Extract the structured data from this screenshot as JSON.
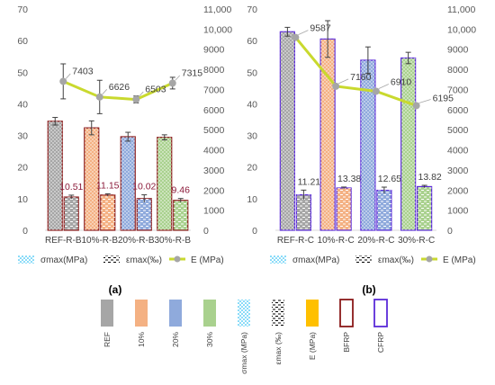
{
  "chart_data": [
    {
      "type": "bar",
      "panel_label": "(a)",
      "categories": [
        "REF-R-B",
        "10%-R-B",
        "20%-R-B",
        "30%-R-B"
      ],
      "y_left": {
        "min": 0,
        "max": 70,
        "ticks": [
          "0",
          "10",
          "20",
          "30",
          "40",
          "50",
          "60",
          "70"
        ]
      },
      "y_right": {
        "min": 0,
        "max": 11000,
        "ticks": [
          "0",
          "1000",
          "2000",
          "3000",
          "4000",
          "5000",
          "6000",
          "7000",
          "8000",
          "9000",
          "10,000",
          "11,000"
        ]
      },
      "series": [
        {
          "name": "σmax(MPa)",
          "axis": "left",
          "kind": "bar",
          "values": [
            34.5,
            32.4,
            29.6,
            29.4
          ],
          "errors": [
            1.2,
            2.2,
            1.4,
            0.8
          ],
          "data_labels": null
        },
        {
          "name": "εmax(‰)",
          "axis": "left",
          "kind": "bar",
          "values": [
            10.51,
            11.15,
            10.02,
            9.46
          ],
          "errors": [
            0.6,
            0.4,
            1.2,
            0.6
          ],
          "data_labels": [
            "10.51",
            "11.15",
            "10.02",
            "9.46"
          ]
        },
        {
          "name": "E (MPa)",
          "axis": "right",
          "kind": "line",
          "values": [
            7403,
            6626,
            6503,
            7315
          ],
          "errors": [
            870,
            830,
            170,
            290
          ],
          "data_labels": [
            "7403",
            "6626",
            "6503",
            "7315"
          ]
        }
      ],
      "legend": [
        "σmax(MPa)",
        "εmax(‰)",
        "E (MPa)"
      ],
      "legend_placement": "bottom",
      "grid": false
    },
    {
      "type": "bar",
      "panel_label": "(b)",
      "categories": [
        "REF-R-C",
        "10%-R-C",
        "20%-R-C",
        "30%-R-C"
      ],
      "y_left": {
        "min": 0,
        "max": 70,
        "ticks": [
          "0",
          "10",
          "20",
          "30",
          "40",
          "50",
          "60",
          "70"
        ]
      },
      "y_right": {
        "min": 0,
        "max": 11000,
        "ticks": [
          "0",
          "1000",
          "2000",
          "3000",
          "4000",
          "5000",
          "6000",
          "7000",
          "8000",
          "9000",
          "10,000",
          "11,000"
        ]
      },
      "series": [
        {
          "name": "σmax(MPa)",
          "axis": "left",
          "kind": "bar",
          "values": [
            62.8,
            60.5,
            53.8,
            54.5
          ],
          "errors": [
            1.4,
            5.8,
            4.2,
            1.8
          ],
          "data_labels": null
        },
        {
          "name": "εmax(‰)",
          "axis": "left",
          "kind": "bar",
          "values": [
            11.21,
            13.38,
            12.65,
            13.82
          ],
          "errors": [
            1.5,
            0.3,
            1.0,
            0.4
          ],
          "data_labels": [
            "11.21",
            "13.38",
            "12.65",
            "13.82"
          ]
        },
        {
          "name": "E (MPa)",
          "axis": "right",
          "kind": "line",
          "values": [
            9587,
            7160,
            6910,
            6195
          ],
          "errors": [
            0,
            0,
            0,
            0
          ],
          "data_labels": [
            "9587",
            "7160",
            "6910",
            "6195"
          ]
        }
      ],
      "legend": [
        "σmax(MPa)",
        "εmax(‰)",
        "E (MPa)"
      ],
      "legend_placement": "bottom",
      "grid": false
    }
  ],
  "key": {
    "items": [
      {
        "label": "REF",
        "kind": "solid",
        "color": "#a6a6a6"
      },
      {
        "label": "10%",
        "kind": "solid",
        "color": "#f4b183"
      },
      {
        "label": "20%",
        "kind": "solid",
        "color": "#8faadc"
      },
      {
        "label": "30%",
        "kind": "solid",
        "color": "#a9d18e"
      },
      {
        "label": "σmax (MPa)",
        "kind": "dots",
        "color": "#00b0f0"
      },
      {
        "label": "εmax (‰)",
        "kind": "dashes",
        "color": "#000000"
      },
      {
        "label": "E (MPa)",
        "kind": "solid",
        "color": "#ffc000"
      },
      {
        "label": "BFRP",
        "kind": "outline",
        "color": "#8b1a1a"
      },
      {
        "label": "CFRP",
        "kind": "outline",
        "color": "#5b2bd8"
      }
    ]
  },
  "colors": {
    "ref": "#a6a6a6",
    "p10": "#f4b183",
    "p20": "#8faadc",
    "p30": "#a9d18e",
    "line": "#c9d92e",
    "marker": "#a6a6a6",
    "bfrp_outline": "#8b1a1a",
    "cfrp_outline": "#5b2bd8",
    "eps_label_a": "#8b1a3a",
    "value_label": "#404040"
  }
}
